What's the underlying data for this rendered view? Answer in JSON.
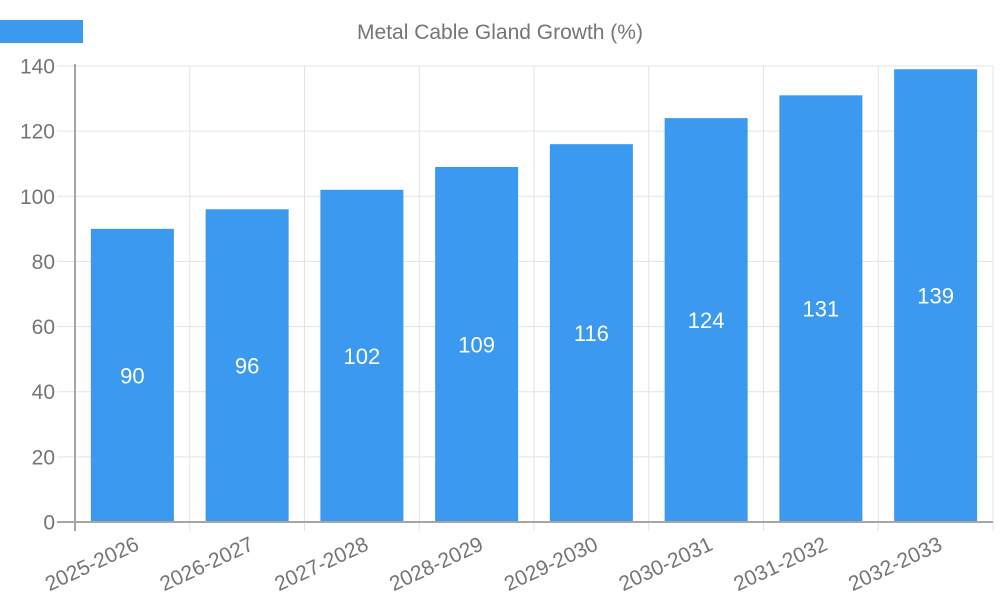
{
  "legend": {
    "label": "Metal Cable Gland Growth (%)"
  },
  "colors": {
    "bar": "#3b99f0",
    "grid": "#e3e3e3",
    "axis": "#a6a6a6",
    "tick_text": "#757575",
    "value_text": "#ffffff",
    "background": "#ffffff"
  },
  "chart_data": {
    "type": "bar",
    "title": "Metal Cable Gland Growth (%)",
    "categories": [
      "2025-2026",
      "2026-2027",
      "2027-2028",
      "2028-2029",
      "2029-2030",
      "2030-2031",
      "2031-2032",
      "2032-2033"
    ],
    "values": [
      90,
      96,
      102,
      109,
      116,
      124,
      131,
      139
    ],
    "xlabel": "",
    "ylabel": "",
    "ylim": [
      0,
      140
    ],
    "yticks": [
      0,
      20,
      40,
      60,
      80,
      100,
      120,
      140
    ],
    "grid": true,
    "legend_position": "top-center",
    "value_label_position": "inside-center",
    "x_tick_rotation_deg": -25
  }
}
